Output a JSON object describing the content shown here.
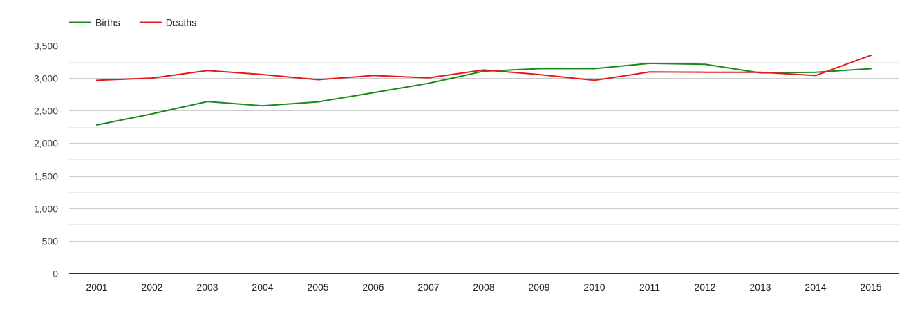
{
  "chart_data": {
    "type": "line",
    "title": "",
    "xlabel": "",
    "ylabel": "",
    "categories": [
      "2001",
      "2002",
      "2003",
      "2004",
      "2005",
      "2006",
      "2007",
      "2008",
      "2009",
      "2010",
      "2011",
      "2012",
      "2013",
      "2014",
      "2015"
    ],
    "series": [
      {
        "name": "Births",
        "color": "#1a8a1a",
        "values": [
          2280,
          2450,
          2640,
          2575,
          2635,
          2775,
          2920,
          3105,
          3145,
          3145,
          3225,
          3210,
          3080,
          3090,
          3145
        ]
      },
      {
        "name": "Deaths",
        "color": "#e31a1c",
        "values": [
          2965,
          3000,
          3115,
          3055,
          2975,
          3040,
          3005,
          3125,
          3055,
          2965,
          3095,
          3090,
          3090,
          3040,
          3350
        ]
      }
    ],
    "ylim": [
      0,
      3500
    ],
    "yticks": [
      0,
      500,
      1000,
      1500,
      2000,
      2500,
      3000,
      3500
    ],
    "ytick_labels": [
      "0",
      "500",
      "1,000",
      "1,500",
      "2,000",
      "2,500",
      "3,000",
      "3,500"
    ],
    "grid": true,
    "minor_grid": true,
    "legend_position": "top-left"
  }
}
